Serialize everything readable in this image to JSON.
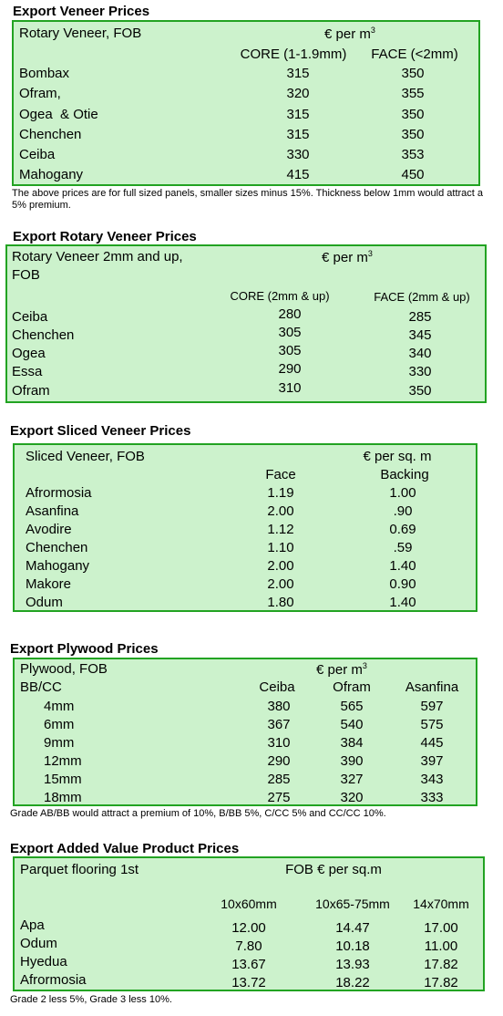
{
  "veneer": {
    "title": "Export Veneer Prices",
    "header_left": "Rotary Veneer, FOB",
    "unit_prefix": "€  per m",
    "unit_sup": "3",
    "col1": "CORE (1-1.9mm)",
    "col2": "FACE (<2mm)",
    "rows": [
      {
        "name": "Bombax",
        "core": "315",
        "face": "350"
      },
      {
        "name": "Ofram,",
        "core": "320",
        "face": "355"
      },
      {
        "name": "Ogea  & Otie",
        "core": "315",
        "face": "350"
      },
      {
        "name": "Chenchen",
        "core": "315",
        "face": "350"
      },
      {
        "name": "Ceiba",
        "core": "330",
        "face": "353"
      },
      {
        "name": "Mahogany",
        "core": "415",
        "face": "450"
      }
    ],
    "note": "The above prices are for full sized panels, smaller sizes minus 15%. Thickness below 1mm would attract a 5% premium."
  },
  "rotary": {
    "title": "Export Rotary Veneer Prices",
    "header_left_1": "Rotary Veneer 2mm and up,",
    "header_left_2": "FOB",
    "unit_prefix": "€  per m",
    "unit_sup": "3",
    "col1": "CORE (2mm & up)",
    "col2": "FACE (2mm & up)",
    "rows": [
      {
        "name": "Ceiba",
        "core": "280",
        "face": "285"
      },
      {
        "name": "Chenchen",
        "core": "305",
        "face": "345"
      },
      {
        "name": "Ogea",
        "core": "305",
        "face": "340"
      },
      {
        "name": "Essa",
        "core": "290",
        "face": "330"
      },
      {
        "name": "Ofram",
        "core": "310",
        "face": "350"
      }
    ]
  },
  "sliced": {
    "title": "Export Sliced Veneer Prices",
    "header_left": "Sliced Veneer, FOB",
    "unit": "€ per sq. m",
    "col1": "Face",
    "col2": "Backing",
    "rows": [
      {
        "name": "Afrormosia",
        "face": "1.19",
        "backing": "1.00"
      },
      {
        "name": "Asanfina",
        "face": "2.00",
        "backing": ".90"
      },
      {
        "name": "Avodire",
        "face": "1.12",
        "backing": "0.69"
      },
      {
        "name": "Chenchen",
        "face": "1.10",
        "backing": ".59"
      },
      {
        "name": "Mahogany",
        "face": "2.00",
        "backing": "1.40"
      },
      {
        "name": "Makore",
        "face": "2.00",
        "backing": "0.90"
      },
      {
        "name": "Odum",
        "face": "1.80",
        "backing": "1.40"
      }
    ]
  },
  "plywood": {
    "title": "Export Plywood Prices",
    "header_left": "Plywood, FOB",
    "sub_left": "BB/CC",
    "unit_prefix": "€  per m",
    "unit_sup": "3",
    "col1": "Ceiba",
    "col2": "Ofram",
    "col3": "Asanfina",
    "rows": [
      {
        "size": "4mm",
        "ceiba": "380",
        "ofram": "565",
        "asanfina": "597"
      },
      {
        "size": "6mm",
        "ceiba": "367",
        "ofram": "540",
        "asanfina": "575"
      },
      {
        "size": "9mm",
        "ceiba": "310",
        "ofram": "384",
        "asanfina": "445"
      },
      {
        "size": "12mm",
        "ceiba": "290",
        "ofram": "390",
        "asanfina": "397"
      },
      {
        "size": "15mm",
        "ceiba": "285",
        "ofram": "327",
        "asanfina": "343"
      },
      {
        "size": "18mm",
        "ceiba": "275",
        "ofram": "320",
        "asanfina": "333"
      }
    ],
    "note": "Grade AB/BB would attract a premium of 10%, B/BB 5%, C/CC 5% and CC/CC 10%."
  },
  "added": {
    "title": "Export Added Value Product Prices",
    "header_left": "Parquet flooring 1st",
    "unit": "FOB € per sq.m",
    "col1": "10x60mm",
    "col2": "10x65-75mm",
    "col3": "14x70mm",
    "rows": [
      {
        "name": "Apa",
        "a": "12.00",
        "b": "14.47",
        "c": "17.00"
      },
      {
        "name": "Odum",
        "a": "7.80",
        "b": "10.18",
        "c": "11.00"
      },
      {
        "name": "Hyedua",
        "a": "13.67",
        "b": "13.93",
        "c": "17.82"
      },
      {
        "name": "Afrormosia",
        "a": "13.72",
        "b": "18.22",
        "c": "17.82"
      }
    ],
    "note": "Grade 2 less 5%, Grade 3 less 10%."
  }
}
